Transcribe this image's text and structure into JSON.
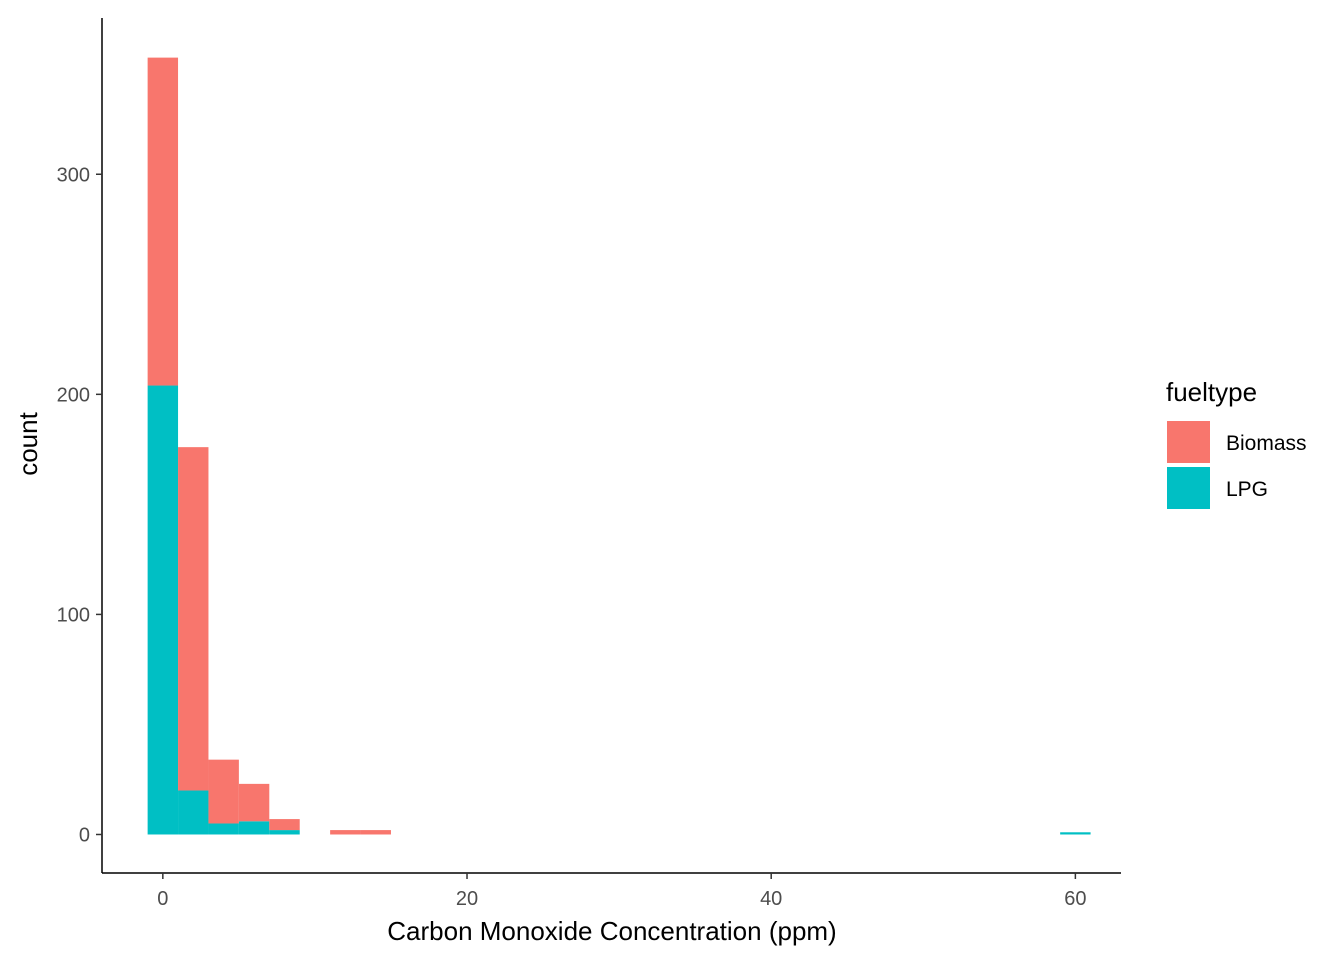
{
  "chart_data": {
    "type": "bar",
    "stacked": true,
    "histogram": true,
    "xlabel": "Carbon Monoxide Concentration (ppm)",
    "ylabel": "count",
    "xlim": [
      -4,
      63
    ],
    "ylim": [
      -17.5,
      371
    ],
    "x_ticks": [
      0,
      20,
      40,
      60
    ],
    "y_ticks": [
      0,
      100,
      200,
      300
    ],
    "grid": false,
    "legend": {
      "title": "fueltype",
      "position": "right"
    },
    "bins": [
      {
        "x0": -1,
        "x1": 1,
        "biomass": 149,
        "lpg": 204
      },
      {
        "x0": 1,
        "x1": 3,
        "biomass": 156,
        "lpg": 20
      },
      {
        "x0": 3,
        "x1": 5,
        "biomass": 29,
        "lpg": 5
      },
      {
        "x0": 5,
        "x1": 7,
        "biomass": 17,
        "lpg": 6
      },
      {
        "x0": 7,
        "x1": 9,
        "biomass": 5,
        "lpg": 2
      },
      {
        "x0": 11,
        "x1": 13,
        "biomass": 2,
        "lpg": 0
      },
      {
        "x0": 13,
        "x1": 15,
        "biomass": 2,
        "lpg": 0
      },
      {
        "x0": 59,
        "x1": 61,
        "biomass": 0,
        "lpg": 1
      }
    ],
    "series": [
      {
        "key": "biomass",
        "name": "Biomass",
        "color": "#F8766D"
      },
      {
        "key": "lpg",
        "name": "LPG",
        "color": "#00BFC4"
      }
    ]
  }
}
